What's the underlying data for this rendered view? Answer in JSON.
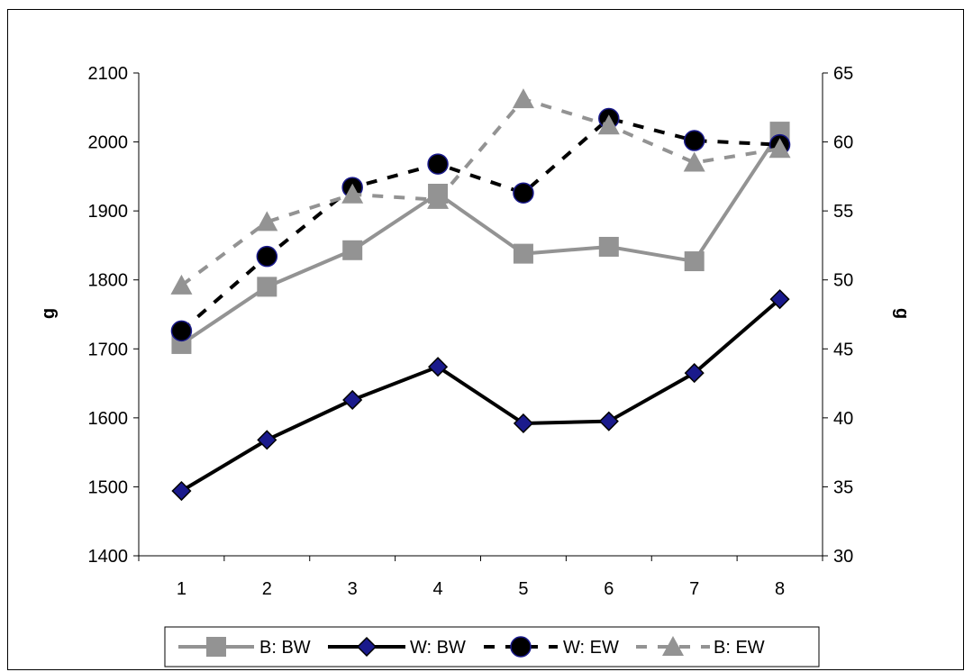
{
  "chart_data": {
    "type": "line",
    "categories": [
      "1",
      "2",
      "3",
      "4",
      "5",
      "6",
      "7",
      "8"
    ],
    "y_left": {
      "label": "g",
      "ylim": [
        1400,
        2100
      ],
      "ticks": [
        1400,
        1500,
        1600,
        1700,
        1800,
        1900,
        2000,
        2100
      ]
    },
    "y_right": {
      "label": "g",
      "ylim": [
        30,
        65
      ],
      "ticks": [
        30,
        35,
        40,
        45,
        50,
        55,
        60,
        65
      ]
    },
    "grid": false,
    "legend_position": "bottom",
    "series": [
      {
        "name": "B: BW",
        "axis": "left",
        "values": [
          1707,
          1790,
          1843,
          1925,
          1838,
          1848,
          1827,
          2015
        ],
        "color": "#939393",
        "dashed": false,
        "marker": "square"
      },
      {
        "name": "W: BW",
        "axis": "left",
        "values": [
          1494,
          1568,
          1626,
          1674,
          1592,
          1595,
          1665,
          1772
        ],
        "color": "#000000",
        "dashed": false,
        "marker": "diamond",
        "marker_fill": "#1a1a8c"
      },
      {
        "name": "W: EW",
        "axis": "right",
        "values": [
          46.3,
          51.7,
          56.7,
          58.4,
          56.3,
          61.7,
          60.1,
          59.8
        ],
        "color": "#000000",
        "dashed": true,
        "marker": "circle",
        "marker_fill": "#000000"
      },
      {
        "name": "B: EW",
        "axis": "right",
        "values": [
          49.6,
          54.2,
          56.2,
          55.8,
          63.1,
          61.2,
          58.5,
          59.5
        ],
        "color": "#939393",
        "dashed": true,
        "marker": "triangle"
      }
    ]
  }
}
